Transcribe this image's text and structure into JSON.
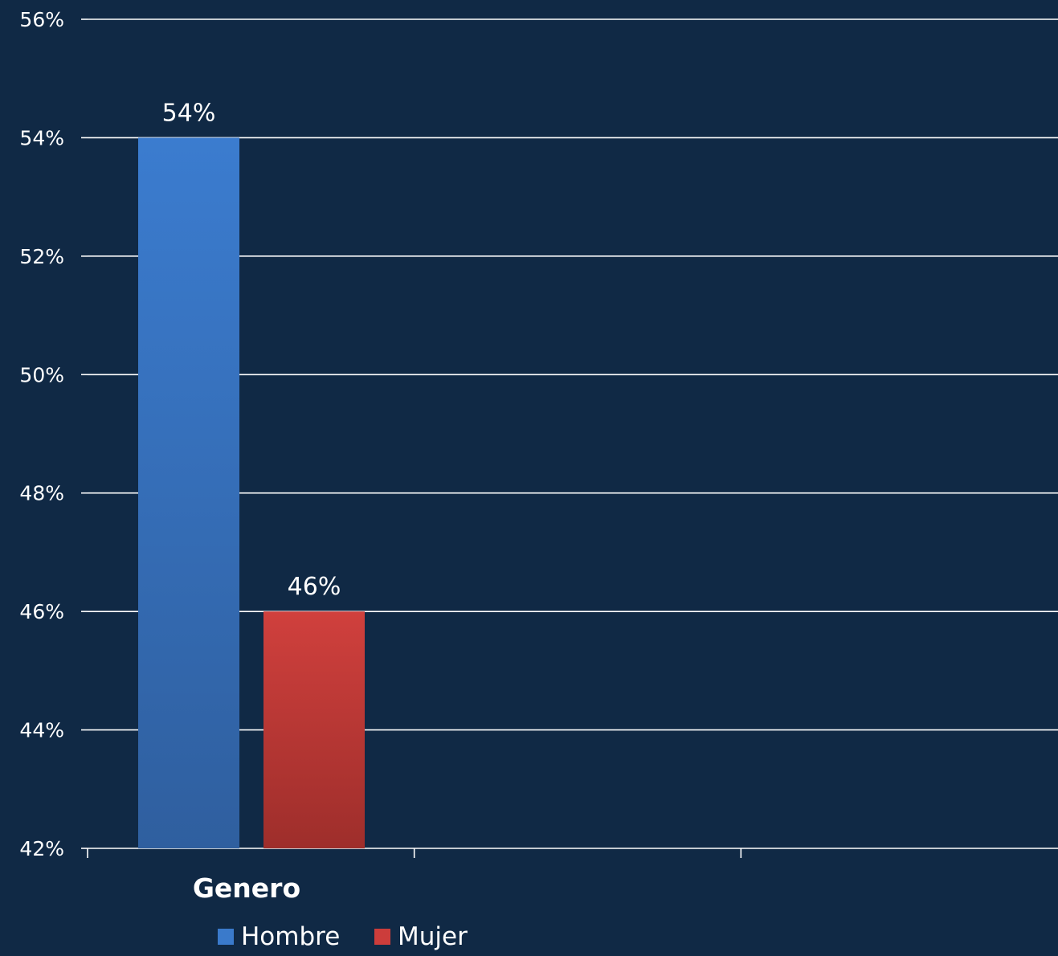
{
  "chart_data": {
    "type": "bar",
    "categories": [
      "Genero",
      "",
      ""
    ],
    "series": [
      {
        "name": "Hombre",
        "values": [
          54,
          null,
          null
        ],
        "color": "#3a7acb"
      },
      {
        "name": "Mujer",
        "values": [
          46,
          null,
          null
        ],
        "color": "#cc3d3b"
      }
    ],
    "data_labels": [
      "54%",
      "46%"
    ],
    "y_ticks": [
      "42%",
      "44%",
      "46%",
      "48%",
      "50%",
      "52%",
      "54%",
      "56%"
    ],
    "ylim": [
      42,
      56
    ],
    "title": "",
    "xlabel": "",
    "ylabel": "",
    "grid": true,
    "legend_position": "bottom"
  },
  "colors": {
    "background": "#102945",
    "gridline": "#ffffff",
    "text": "#ffffff"
  }
}
